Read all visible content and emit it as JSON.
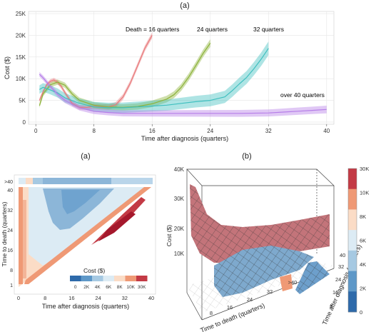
{
  "chart_data": [
    {
      "type": "line",
      "panel": "(a)",
      "xlabel": "Time after diagnosis (quarters)",
      "ylabel": "Cost ($)",
      "xlim": [
        -1,
        41
      ],
      "ylim": [
        -500,
        25500
      ],
      "xticks": [
        0,
        8,
        16,
        24,
        32,
        40
      ],
      "yticks": [
        0,
        5000,
        10000,
        15000,
        20000,
        25000
      ],
      "ytick_labels": [
        "0",
        "5K",
        "10K",
        "15K",
        "20K",
        "25K"
      ],
      "grid": true,
      "legend": "none",
      "series": [
        {
          "color": "#e8787a",
          "x": [
            0.5,
            1,
            1.5,
            2,
            2.5,
            3,
            3.5,
            4,
            5,
            6,
            7,
            8,
            9,
            10,
            11,
            12,
            13,
            14,
            15,
            16
          ],
          "y": [
            5000,
            7000,
            8600,
            9400,
            9700,
            9200,
            8200,
            6800,
            4300,
            3400,
            3400,
            3600,
            3500,
            3500,
            4000,
            5800,
            9000,
            13000,
            17000,
            20000
          ],
          "band": 700
        },
        {
          "color": "#8db33a",
          "x": [
            0.5,
            1,
            2,
            3,
            4,
            5,
            6,
            8,
            10,
            12,
            14,
            16,
            18,
            19,
            20,
            21,
            22,
            23,
            24
          ],
          "y": [
            3800,
            6500,
            8600,
            9200,
            8500,
            6500,
            5000,
            3900,
            3500,
            3400,
            3600,
            4200,
            5300,
            6300,
            8000,
            10300,
            13000,
            15800,
            18200
          ],
          "band": 900
        },
        {
          "color": "#3fbfbf",
          "x": [
            0.5,
            1,
            2,
            3,
            4,
            6,
            8,
            10,
            12,
            14,
            16,
            18,
            20,
            22,
            24,
            26,
            27,
            28,
            29,
            30,
            31,
            32
          ],
          "y": [
            7500,
            8000,
            7400,
            6700,
            5600,
            4300,
            3500,
            3300,
            3300,
            3500,
            3700,
            3900,
            4300,
            4700,
            5000,
            5800,
            7200,
            8800,
            10300,
            12300,
            14500,
            17000
          ],
          "band": 1600
        },
        {
          "color": "#b57de8",
          "x": [
            0.5,
            1,
            2,
            3,
            4,
            6,
            8,
            10,
            12,
            14,
            16,
            20,
            24,
            28,
            32,
            34,
            36,
            38,
            40
          ],
          "y": [
            11000,
            10200,
            8200,
            6400,
            5000,
            3300,
            2500,
            2200,
            2000,
            2000,
            2000,
            2000,
            2000,
            2000,
            2100,
            2300,
            2500,
            2700,
            2900
          ],
          "band": 900
        }
      ],
      "annotations": [
        "Death = 16 quarters",
        "24 quarters",
        "32 quarters",
        "over 40 quarters"
      ]
    },
    {
      "type": "heatmap",
      "panel": "(a)",
      "xlabel": "Time after diagnosis (quarters)",
      "ylabel": "Time to death (quarters)",
      "xticks": [
        0,
        8,
        16,
        24,
        32,
        40
      ],
      "yticks": [
        "1",
        "8",
        "16",
        "24",
        "32",
        "40",
        ">40"
      ],
      "legend_title": "Cost ($)",
      "legend_labels": [
        "0",
        "2K",
        "4K",
        "6K",
        "8K",
        "10K",
        "30K"
      ],
      "colors": [
        "#2e6aaa",
        "#5e98c8",
        "#a6c9e2",
        "#dcebf4",
        "#fbdcc6",
        "#ef9975",
        "#c33a45",
        "#a5182c"
      ]
    },
    {
      "type": "surface3d",
      "panel": "(b)",
      "xlabel": "Time to death (quarters)",
      "ylabel": "Time after diagnosis (quarters)",
      "zlabel": "Cost ($)",
      "xticks": [
        "8",
        "16",
        "24",
        "32",
        ">40"
      ],
      "yticks": [
        "8",
        "16",
        "24",
        "32",
        "40"
      ],
      "zticks": [
        "10K",
        "20K",
        "30K",
        "40K"
      ],
      "colorbar_labels": [
        "0",
        "2K",
        "4K",
        "6K",
        "8K",
        "10K",
        "30K"
      ],
      "colors": [
        "#2e6aaa",
        "#5e98c8",
        "#a6c9e2",
        "#dcebf4",
        "#fbdcc6",
        "#ef9975",
        "#c33a45",
        "#a5182c"
      ]
    }
  ]
}
